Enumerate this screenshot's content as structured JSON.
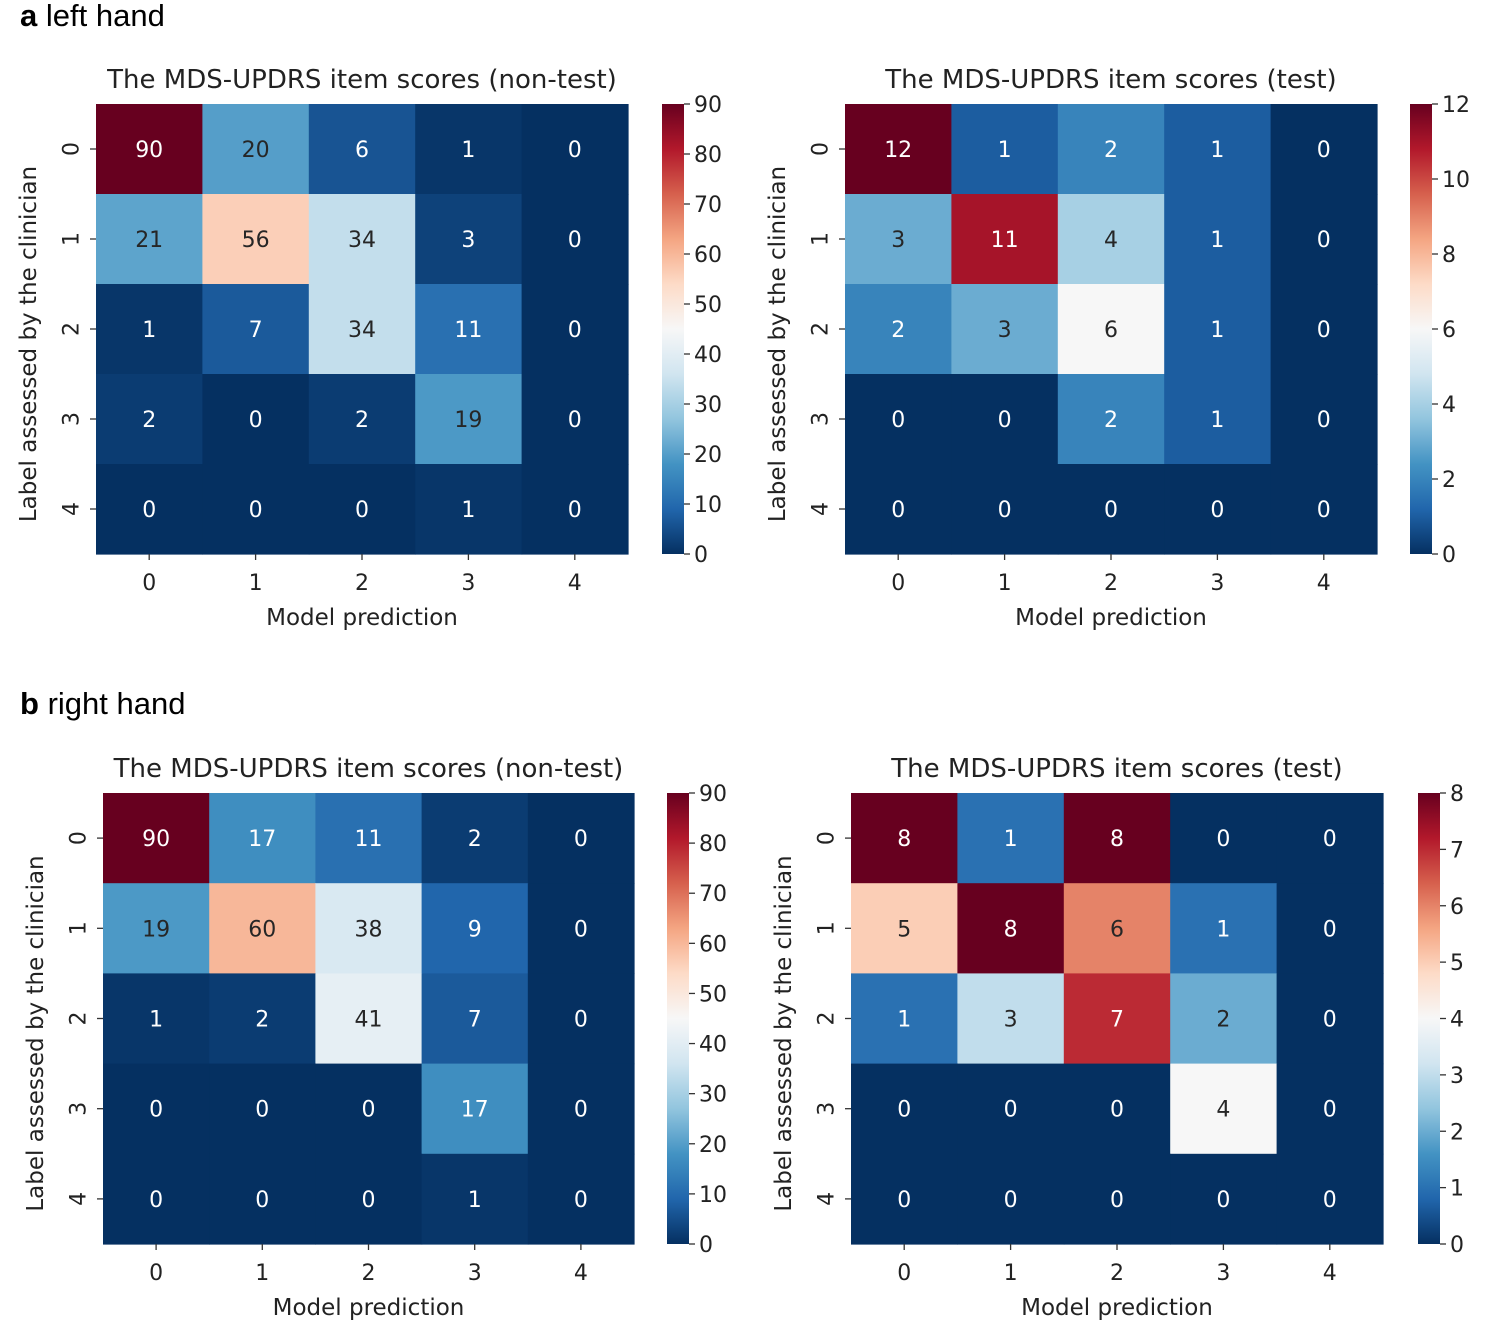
{
  "sections": [
    {
      "letter": "a",
      "label": "left hand"
    },
    {
      "letter": "b",
      "label": "right hand"
    }
  ],
  "chart_data": [
    {
      "type": "heatmap",
      "panel": "a-left",
      "title": "The MDS-UPDRS item scores (non-test)",
      "xlabel": "Model prediction",
      "ylabel": "Label assessed by the clinician",
      "x_categories": [
        "0",
        "1",
        "2",
        "3",
        "4"
      ],
      "y_categories": [
        "0",
        "1",
        "2",
        "3",
        "4"
      ],
      "values": [
        [
          90,
          20,
          6,
          1,
          0
        ],
        [
          21,
          56,
          34,
          3,
          0
        ],
        [
          1,
          7,
          34,
          11,
          0
        ],
        [
          2,
          0,
          2,
          19,
          0
        ],
        [
          0,
          0,
          0,
          1,
          0
        ]
      ],
      "vmin": 0,
      "vmax": 90,
      "colorbar_ticks": [
        0,
        10,
        20,
        30,
        40,
        50,
        60,
        70,
        80,
        90
      ],
      "colormap": "RdBu_r"
    },
    {
      "type": "heatmap",
      "panel": "a-right",
      "title": "The MDS-UPDRS item scores (test)",
      "xlabel": "Model prediction",
      "ylabel": "Label assessed by the clinician",
      "x_categories": [
        "0",
        "1",
        "2",
        "3",
        "4"
      ],
      "y_categories": [
        "0",
        "1",
        "2",
        "3",
        "4"
      ],
      "values": [
        [
          12,
          1,
          2,
          1,
          0
        ],
        [
          3,
          11,
          4,
          1,
          0
        ],
        [
          2,
          3,
          6,
          1,
          0
        ],
        [
          0,
          0,
          2,
          1,
          0
        ],
        [
          0,
          0,
          0,
          0,
          0
        ]
      ],
      "vmin": 0,
      "vmax": 12,
      "colorbar_ticks": [
        0,
        2,
        4,
        6,
        8,
        10,
        12
      ],
      "colormap": "RdBu_r"
    },
    {
      "type": "heatmap",
      "panel": "b-left",
      "title": "The MDS-UPDRS item scores (non-test)",
      "xlabel": "Model prediction",
      "ylabel": "Label assessed by the clinician",
      "x_categories": [
        "0",
        "1",
        "2",
        "3",
        "4"
      ],
      "y_categories": [
        "0",
        "1",
        "2",
        "3",
        "4"
      ],
      "values": [
        [
          90,
          17,
          11,
          2,
          0
        ],
        [
          19,
          60,
          38,
          9,
          0
        ],
        [
          1,
          2,
          41,
          7,
          0
        ],
        [
          0,
          0,
          0,
          17,
          0
        ],
        [
          0,
          0,
          0,
          1,
          0
        ]
      ],
      "vmin": 0,
      "vmax": 90,
      "colorbar_ticks": [
        0,
        10,
        20,
        30,
        40,
        50,
        60,
        70,
        80,
        90
      ],
      "colormap": "RdBu_r"
    },
    {
      "type": "heatmap",
      "panel": "b-right",
      "title": "The MDS-UPDRS item scores (test)",
      "xlabel": "Model prediction",
      "ylabel": "Label assessed by the clinician",
      "x_categories": [
        "0",
        "1",
        "2",
        "3",
        "4"
      ],
      "y_categories": [
        "0",
        "1",
        "2",
        "3",
        "4"
      ],
      "values": [
        [
          8,
          1,
          8,
          0,
          0
        ],
        [
          5,
          8,
          6,
          1,
          0
        ],
        [
          1,
          3,
          7,
          2,
          0
        ],
        [
          0,
          0,
          0,
          4,
          0
        ],
        [
          0,
          0,
          0,
          0,
          0
        ]
      ],
      "vmin": 0,
      "vmax": 8,
      "colorbar_ticks": [
        0,
        1,
        2,
        3,
        4,
        5,
        6,
        7,
        8
      ],
      "colormap": "RdBu_r"
    }
  ]
}
